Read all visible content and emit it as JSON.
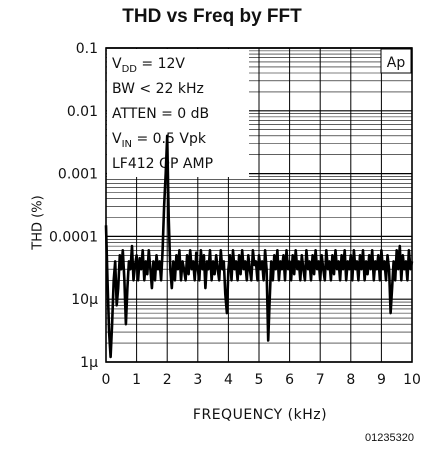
{
  "chart_data": {
    "type": "line",
    "title": "THD vs Freq by FFT",
    "xlabel": "FREQUENCY (kHz)",
    "ylabel": "THD (%)",
    "xlim": [
      0,
      10
    ],
    "ylim": [
      1e-06,
      0.1
    ],
    "yscale": "log",
    "grid": true,
    "x_ticks": [
      {
        "value": 0,
        "label": "0"
      },
      {
        "value": 1,
        "label": "1"
      },
      {
        "value": 2,
        "label": "2"
      },
      {
        "value": 3,
        "label": "3"
      },
      {
        "value": 4,
        "label": "4"
      },
      {
        "value": 5,
        "label": "5"
      },
      {
        "value": 6,
        "label": "6"
      },
      {
        "value": 7,
        "label": "7"
      },
      {
        "value": 8,
        "label": "8"
      },
      {
        "value": 9,
        "label": "9"
      },
      {
        "value": 10,
        "label": "10"
      }
    ],
    "y_ticks": [
      {
        "value": 0.1,
        "label": "0.1"
      },
      {
        "value": 0.01,
        "label": "0.01"
      },
      {
        "value": 0.001,
        "label": "0.001"
      },
      {
        "value": 0.0001,
        "label": "0.0001"
      },
      {
        "value": 1e-05,
        "label": "10µ"
      },
      {
        "value": 1e-06,
        "label": "1µ"
      }
    ],
    "conditions": [
      {
        "text": "V",
        "sub": "DD",
        "rest": " = 12V"
      },
      {
        "text": "BW < 22 kHz",
        "sub": "",
        "rest": ""
      },
      {
        "text": "ATTEN = 0 dB",
        "sub": "",
        "rest": ""
      },
      {
        "text": "V",
        "sub": "IN",
        "rest": " = 0.5 Vpk"
      },
      {
        "text": "LF412 OP AMP",
        "sub": "",
        "rest": ""
      }
    ],
    "logo": "Ap",
    "series": [
      {
        "x": [
          0.0,
          0.05,
          0.1,
          0.15,
          0.2,
          0.25,
          0.3,
          0.35,
          0.4,
          0.45,
          0.5,
          0.55,
          0.6,
          0.65,
          0.7,
          0.75,
          0.8,
          0.85,
          0.9,
          0.95,
          1.0,
          1.05,
          1.1,
          1.15,
          1.2,
          1.25,
          1.3,
          1.35,
          1.4,
          1.45,
          1.5,
          1.55,
          1.6,
          1.65,
          1.7,
          1.75,
          1.8,
          1.85,
          1.9,
          1.95,
          2.0,
          2.05,
          2.1,
          2.15,
          2.2,
          2.25,
          2.3,
          2.35,
          2.4,
          2.45,
          2.5,
          2.55,
          2.6,
          2.65,
          2.7,
          2.75,
          2.8,
          2.85,
          2.9,
          2.95,
          3.0,
          3.05,
          3.1,
          3.15,
          3.2,
          3.25,
          3.3,
          3.35,
          3.4,
          3.45,
          3.5,
          3.55,
          3.6,
          3.65,
          3.7,
          3.75,
          3.8,
          3.85,
          3.9,
          3.95,
          4.0,
          4.05,
          4.1,
          4.15,
          4.2,
          4.25,
          4.3,
          4.35,
          4.4,
          4.45,
          4.5,
          4.55,
          4.6,
          4.65,
          4.7,
          4.75,
          4.8,
          4.85,
          4.9,
          4.95,
          5.0,
          5.05,
          5.1,
          5.15,
          5.2,
          5.25,
          5.3,
          5.35,
          5.4,
          5.45,
          5.5,
          5.55,
          5.6,
          5.65,
          5.7,
          5.75,
          5.8,
          5.85,
          5.9,
          5.95,
          6.0,
          6.05,
          6.1,
          6.15,
          6.2,
          6.25,
          6.3,
          6.35,
          6.4,
          6.45,
          6.5,
          6.55,
          6.6,
          6.65,
          6.7,
          6.75,
          6.8,
          6.85,
          6.9,
          6.95,
          7.0,
          7.05,
          7.1,
          7.15,
          7.2,
          7.25,
          7.3,
          7.35,
          7.4,
          7.45,
          7.5,
          7.55,
          7.6,
          7.65,
          7.7,
          7.75,
          7.8,
          7.85,
          7.9,
          7.95,
          8.0,
          8.05,
          8.1,
          8.15,
          8.2,
          8.25,
          8.3,
          8.35,
          8.4,
          8.45,
          8.5,
          8.55,
          8.6,
          8.65,
          8.7,
          8.75,
          8.8,
          8.85,
          8.9,
          8.95,
          9.0,
          9.05,
          9.1,
          9.15,
          9.2,
          9.25,
          9.3,
          9.35,
          9.4,
          9.45,
          9.5,
          9.55,
          9.6,
          9.65,
          9.7,
          9.75,
          9.8,
          9.85,
          9.9,
          9.95,
          10.0
        ],
        "y": [
          0.00015,
          2e-05,
          3e-06,
          1.2e-06,
          4e-06,
          2e-05,
          4e-05,
          8e-06,
          1.5e-05,
          5e-05,
          3e-05,
          6e-05,
          2e-05,
          4e-06,
          1.5e-05,
          4e-05,
          3e-05,
          7e-05,
          2e-05,
          3.5e-05,
          5e-05,
          2e-05,
          4.5e-05,
          3e-05,
          6e-05,
          2e-05,
          4e-05,
          2.5e-05,
          6e-05,
          3e-05,
          1.5e-05,
          4e-05,
          2e-05,
          5e-05,
          3e-05,
          4e-05,
          2e-05,
          6e-05,
          0.0003,
          0.001,
          0.004,
          0.0002,
          3e-05,
          1.5e-05,
          4e-05,
          2e-05,
          5e-05,
          3e-05,
          6e-05,
          2e-05,
          4e-05,
          3e-05,
          2e-05,
          5e-05,
          2.5e-05,
          6e-05,
          3e-05,
          4e-05,
          2e-05,
          5.5e-05,
          3e-05,
          2e-05,
          6e-05,
          3e-05,
          5e-05,
          1.5e-05,
          4e-05,
          3e-05,
          6e-05,
          2e-05,
          4e-05,
          2.5e-05,
          5e-05,
          3e-05,
          2e-05,
          6e-05,
          3e-05,
          4e-05,
          1.2e-05,
          6e-06,
          3e-05,
          5e-05,
          2e-05,
          6e-05,
          3e-05,
          4e-05,
          2e-05,
          5e-05,
          2.5e-05,
          6e-05,
          3e-05,
          4e-05,
          2e-05,
          5e-05,
          3e-05,
          2e-05,
          6e-05,
          3.5e-05,
          4e-05,
          2e-05,
          5e-05,
          3e-05,
          4e-05,
          2e-05,
          6e-05,
          3e-05,
          2.2e-06,
          1e-05,
          4e-05,
          2e-05,
          5e-05,
          3e-05,
          6e-05,
          2e-05,
          4e-05,
          3e-05,
          5e-05,
          2e-05,
          6e-05,
          3e-05,
          4e-05,
          2e-05,
          5e-05,
          2.5e-05,
          6e-05,
          3e-05,
          4e-05,
          2e-05,
          5e-05,
          3e-05,
          2e-05,
          6e-05,
          3e-05,
          4e-05,
          2e-05,
          5e-05,
          2.5e-05,
          6e-05,
          3e-05,
          4e-05,
          2e-05,
          5e-05,
          3e-05,
          2e-05,
          6e-05,
          3e-05,
          4e-05,
          2e-05,
          5e-05,
          2.5e-05,
          6e-05,
          3e-05,
          4e-05,
          2e-05,
          5e-05,
          3e-05,
          6e-05,
          2e-05,
          4e-05,
          3e-05,
          5e-05,
          2e-05,
          6e-05,
          3e-05,
          4e-05,
          2e-05,
          5e-05,
          3e-05,
          6e-05,
          2e-05,
          4e-05,
          2.5e-05,
          5e-05,
          3e-05,
          6e-05,
          2e-05,
          4e-05,
          3e-05,
          5e-05,
          2e-05,
          6e-05,
          3e-05,
          4e-05,
          2e-05,
          5e-05,
          3e-05,
          6e-06,
          1.5e-05,
          4e-05,
          2e-05,
          6e-05,
          3e-05,
          7e-05,
          2e-05,
          5e-05,
          3e-05,
          4e-05,
          2e-05,
          6e-05,
          3e-05,
          4e-05
        ]
      }
    ]
  },
  "figure_id": "01235320"
}
